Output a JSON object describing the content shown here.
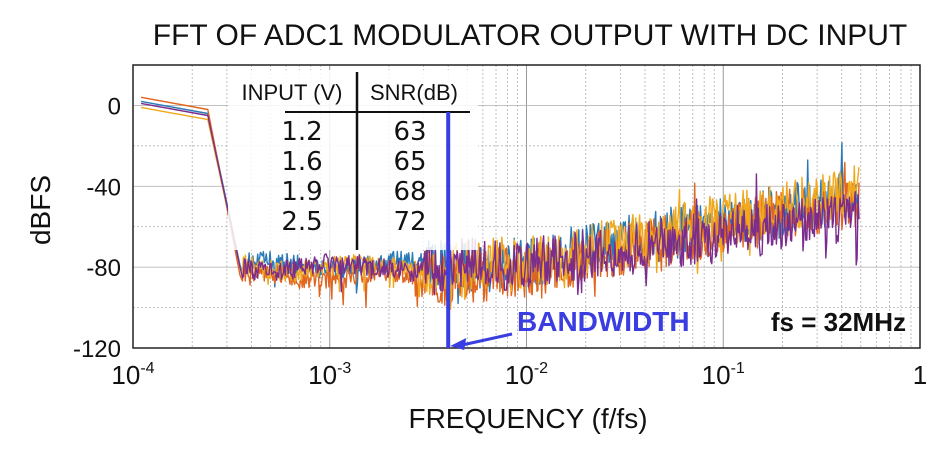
{
  "chart_data": {
    "type": "line",
    "title": "FFT OF ADC1 MODULATOR OUTPUT WITH DC INPUT",
    "xlabel": "FREQUENCY (f/fs)",
    "ylabel": "dBFS",
    "xscale": "log",
    "xlim": [
      0.0001,
      1
    ],
    "ylim": [
      -120,
      20
    ],
    "x_ticks": [
      {
        "base": "10",
        "exp": "-4"
      },
      {
        "base": "10",
        "exp": "-3"
      },
      {
        "base": "10",
        "exp": "-2"
      },
      {
        "base": "10",
        "exp": "-1"
      },
      {
        "base": "1",
        "exp": ""
      }
    ],
    "y_ticks": [
      "0",
      "-40",
      "-80",
      "-120"
    ],
    "y_tick_values": [
      0,
      -40,
      -80,
      -120
    ],
    "grid": true,
    "series": [
      {
        "color": "#2a7ab8",
        "dc_level": 2,
        "floor_x": 0.00035,
        "floor": -79,
        "high_freq_level": -45,
        "rise_start": 0.008
      },
      {
        "color": "#e0651e",
        "dc_level": 4,
        "floor_x": 0.00035,
        "floor": -84,
        "high_freq_level": -47,
        "rise_start": 0.008
      },
      {
        "color": "#f0a81c",
        "dc_level": -1,
        "floor_x": 0.00035,
        "floor": -80,
        "high_freq_level": -42,
        "rise_start": 0.008
      },
      {
        "color": "#7b2d8e",
        "dc_level": 1,
        "floor_x": 0.00035,
        "floor": -80,
        "high_freq_level": -55,
        "rise_start": 0.008
      }
    ],
    "table": {
      "headers": [
        "INPUT (V)",
        "SNR(dB)"
      ],
      "rows": [
        [
          "1.2",
          "63"
        ],
        [
          "1.6",
          "65"
        ],
        [
          "1.9",
          "68"
        ],
        [
          "2.5",
          "72"
        ]
      ]
    },
    "annotations": {
      "bandwidth_label": "BANDWIDTH",
      "bandwidth_x": 0.004,
      "bandwidth_color": "#3a3de0",
      "fs_label": "fs = 32MHz"
    }
  }
}
